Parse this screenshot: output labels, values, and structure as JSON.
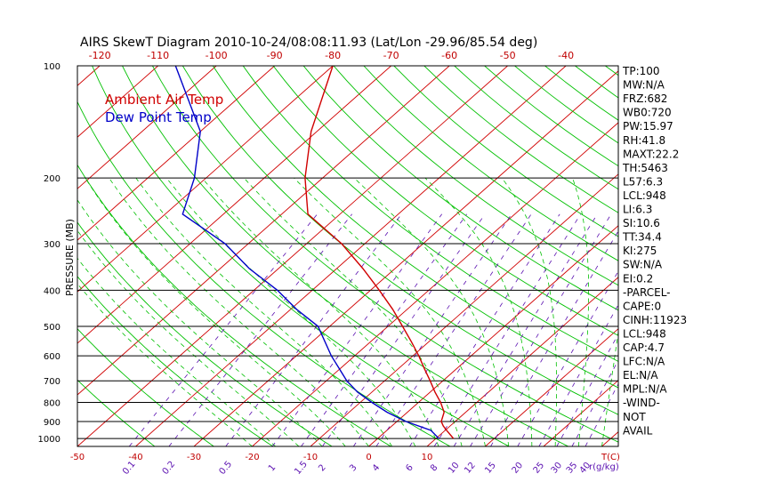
{
  "title": "AIRS SkewT Diagram 2010-10-24/08:08:11.93 (Lat/Lon -29.96/85.54 deg)",
  "colors": {
    "temp": "#d00000",
    "dew": "#0000c8",
    "isotherm": "#d00000",
    "dry": "#00c000",
    "moist": "#00c000",
    "mixing": "#5a0fb0",
    "frame": "#000000"
  },
  "chart_data": {
    "type": "line",
    "title": "AIRS SkewT Diagram 2010-10-24/08:08:11.93 (Lat/Lon -29.96/85.54 deg)",
    "ylabel": "PRESSURE (MB)",
    "xlabel": "T(C)",
    "mixing_label": "r(g/kg)",
    "y_scale": "log",
    "ylim": [
      1050,
      100
    ],
    "pressure_ticks": [
      100,
      200,
      300,
      400,
      500,
      600,
      700,
      800,
      900,
      1000
    ],
    "top_temp_ticks": [
      -120,
      -110,
      -100,
      -90,
      -80,
      -70,
      -60,
      -50,
      -40
    ],
    "bottom_temp_ticks": [
      -50,
      -40,
      -30,
      -20,
      -10,
      0,
      10
    ],
    "mixing_ratio_ticks": [
      "0.1",
      "0.2",
      "0.5",
      "1",
      "1.5",
      "2",
      "3",
      "4",
      "6",
      "8",
      "10",
      "12",
      "15",
      "20",
      "25",
      "30",
      "35",
      "40"
    ],
    "series": [
      {
        "name": "Ambient Air Temp",
        "points": [
          {
            "p": 1000,
            "t": 13
          },
          {
            "p": 950,
            "t": 10.2
          },
          {
            "p": 925,
            "t": 8.8
          },
          {
            "p": 900,
            "t": 7.6
          },
          {
            "p": 850,
            "t": 6.3
          },
          {
            "p": 800,
            "t": 3.8
          },
          {
            "p": 750,
            "t": 0.8
          },
          {
            "p": 700,
            "t": -2.2
          },
          {
            "p": 650,
            "t": -5.5
          },
          {
            "p": 600,
            "t": -9
          },
          {
            "p": 550,
            "t": -13
          },
          {
            "p": 500,
            "t": -17.5
          },
          {
            "p": 450,
            "t": -22.5
          },
          {
            "p": 400,
            "t": -28.5
          },
          {
            "p": 350,
            "t": -35.5
          },
          {
            "p": 300,
            "t": -44
          },
          {
            "p": 250,
            "t": -55.5
          },
          {
            "p": 200,
            "t": -63
          },
          {
            "p": 150,
            "t": -71
          },
          {
            "p": 100,
            "t": -80
          }
        ]
      },
      {
        "name": "Dew Point Temp",
        "points": [
          {
            "p": 1000,
            "t": 10.5
          },
          {
            "p": 950,
            "t": 7.5
          },
          {
            "p": 900,
            "t": 1.5
          },
          {
            "p": 850,
            "t": -3.5
          },
          {
            "p": 800,
            "t": -8
          },
          {
            "p": 750,
            "t": -12.5
          },
          {
            "p": 700,
            "t": -16.5
          },
          {
            "p": 600,
            "t": -24
          },
          {
            "p": 500,
            "t": -32
          },
          {
            "p": 450,
            "t": -39
          },
          {
            "p": 400,
            "t": -46
          },
          {
            "p": 350,
            "t": -55
          },
          {
            "p": 300,
            "t": -64
          },
          {
            "p": 250,
            "t": -77
          },
          {
            "p": 200,
            "t": -82
          },
          {
            "p": 150,
            "t": -90
          },
          {
            "p": 100,
            "t": -107
          }
        ]
      }
    ]
  },
  "indices": [
    "TP:100",
    "MW:N/A",
    "FRZ:682",
    "WB0:720",
    "PW:15.97",
    "RH:41.8",
    "MAXT:22.2",
    "TH:5463",
    "L57:6.3",
    "LCL:948",
    "LI:6.3",
    "SI:10.6",
    "TT:34.4",
    "KI:275",
    "SW:N/A",
    "EI:0.2",
    "-PARCEL-",
    "CAPE:0",
    "CINH:11923",
    "LCL:948",
    "CAP:4.7",
    "LFC:N/A",
    "EL:N/A",
    "MPL:N/A",
    "-WIND-",
    "NOT",
    "AVAIL"
  ]
}
